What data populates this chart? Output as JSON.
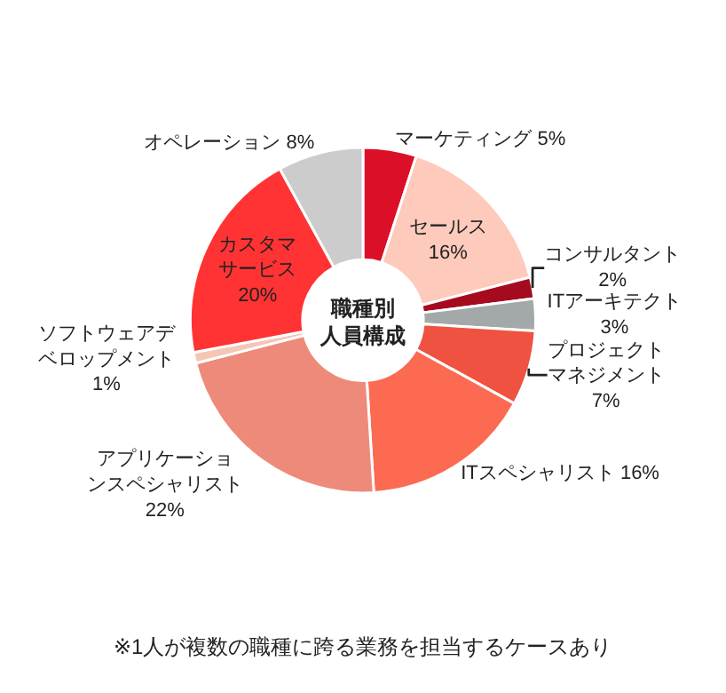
{
  "chart_data": {
    "type": "donut",
    "title": "職種別人員構成",
    "categories": [
      "マーケティング",
      "セールス",
      "コンサルタント",
      "ITアーキテクト",
      "プロジェクトマネジメント",
      "ITスペシャリスト",
      "アプリケーションスペシャリスト",
      "ソフトウェアデベロップメント",
      "カスタマサービス",
      "オペレーション"
    ],
    "values": [
      5,
      16,
      2,
      3,
      7,
      16,
      22,
      1,
      20,
      8
    ],
    "value_labels": [
      "5%",
      "16%",
      "2%",
      "3%",
      "7%",
      "16%",
      "22%",
      "1%",
      "20%",
      "8%"
    ],
    "colors": [
      "#dc0f28",
      "#fdcabb",
      "#a50a1e",
      "#a3a8a8",
      "#ef5240",
      "#fb6a51",
      "#ee8a7a",
      "#f4c6b3",
      "#ff3333",
      "#cccccc"
    ],
    "annotations": [
      "※1人が複数の職種に跨る業務を担当するケースあり"
    ]
  }
}
